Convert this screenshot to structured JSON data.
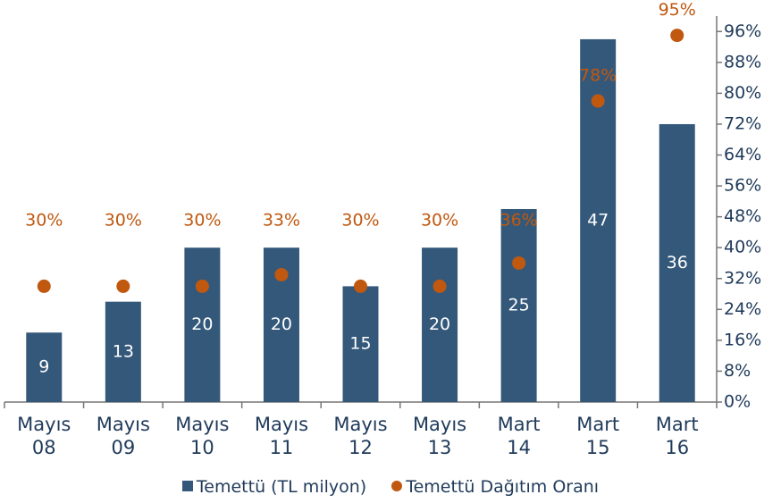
{
  "chart_data": {
    "type": "bar",
    "categories": [
      "Mayıs 08",
      "Mayıs 09",
      "Mayıs 10",
      "Mayıs 11",
      "Mayıs 12",
      "Mayıs 13",
      "Mart 14",
      "Mart 15",
      "Mart 16"
    ],
    "series": [
      {
        "name": "Temettü (TL milyon)",
        "color": "#34587a",
        "values": [
          9,
          13,
          20,
          20,
          15,
          20,
          25,
          47,
          36
        ]
      },
      {
        "name": "Temettü Dağıtım Oranı",
        "color": "#c0580f",
        "axis": "y2",
        "values": [
          30,
          30,
          30,
          33,
          30,
          30,
          36,
          78,
          95
        ],
        "value_labels": [
          "30%",
          "30%",
          "30%",
          "33%",
          "30%",
          "30%",
          "36%",
          "78%",
          "95%"
        ]
      }
    ],
    "ylim": [
      0,
      50
    ],
    "y2lim": [
      0,
      100
    ],
    "y2ticks": [
      {
        "value": 0,
        "label": "0%"
      },
      {
        "value": 8,
        "label": "8%"
      },
      {
        "value": 16,
        "label": "16%"
      },
      {
        "value": 24,
        "label": "24%"
      },
      {
        "value": 32,
        "label": "32%"
      },
      {
        "value": 40,
        "label": "40%"
      },
      {
        "value": 48,
        "label": "48%"
      },
      {
        "value": 56,
        "label": "56%"
      },
      {
        "value": 64,
        "label": "64%"
      },
      {
        "value": 72,
        "label": "72%"
      },
      {
        "value": 80,
        "label": "80%"
      },
      {
        "value": 88,
        "label": "88%"
      },
      {
        "value": 96,
        "label": "96%"
      }
    ],
    "legend": "bottom"
  }
}
